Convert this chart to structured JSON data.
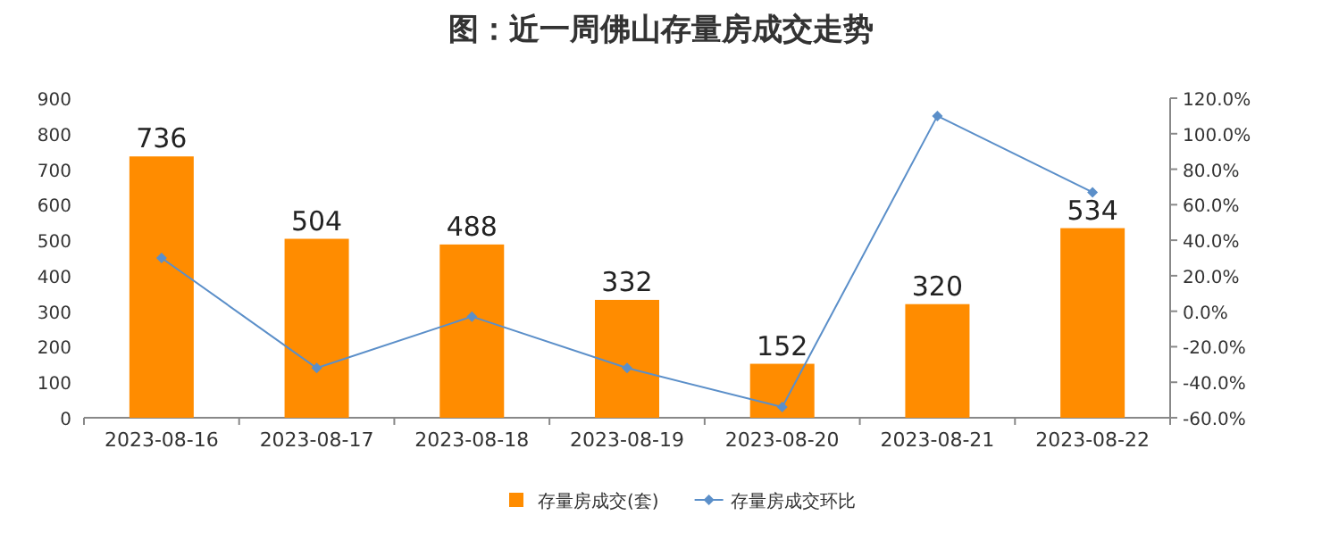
{
  "chart_data": {
    "type": "bar",
    "title": "图：近一周佛山存量房成交走势",
    "categories": [
      "2023-08-16",
      "2023-08-17",
      "2023-08-18",
      "2023-08-19",
      "2023-08-20",
      "2023-08-21",
      "2023-08-22"
    ],
    "series": [
      {
        "name": "存量房成交(套)",
        "color": "#ff8c00",
        "values": [
          736,
          504,
          488,
          332,
          152,
          320,
          534
        ],
        "value_labels": [
          "736",
          "504",
          "488",
          "332",
          "152",
          "320",
          "534"
        ]
      },
      {
        "name": "存量房成交环比",
        "type": "line",
        "axis": "y2",
        "color": "#5b8fc9",
        "values": [
          30,
          -32,
          -3,
          -32,
          -54,
          110,
          67
        ]
      }
    ],
    "ylim": [
      0,
      900
    ],
    "yticks": [
      0,
      100,
      200,
      300,
      400,
      500,
      600,
      700,
      800,
      900
    ],
    "y2lim": [
      -60,
      120
    ],
    "y2ticks": [
      {
        "value": -60,
        "label": "-60.0%"
      },
      {
        "value": -40,
        "label": "-40.0%"
      },
      {
        "value": -20,
        "label": "-20.0%"
      },
      {
        "value": 0,
        "label": "0.0%"
      },
      {
        "value": 20,
        "label": "20.0%"
      },
      {
        "value": 40,
        "label": "40.0%"
      },
      {
        "value": 60,
        "label": "60.0%"
      },
      {
        "value": 80,
        "label": "80.0%"
      },
      {
        "value": 100,
        "label": "100.0%"
      },
      {
        "value": 120,
        "label": "120.0%"
      }
    ],
    "legend": "bottom",
    "marker": "diamond",
    "line_style": "solid"
  }
}
